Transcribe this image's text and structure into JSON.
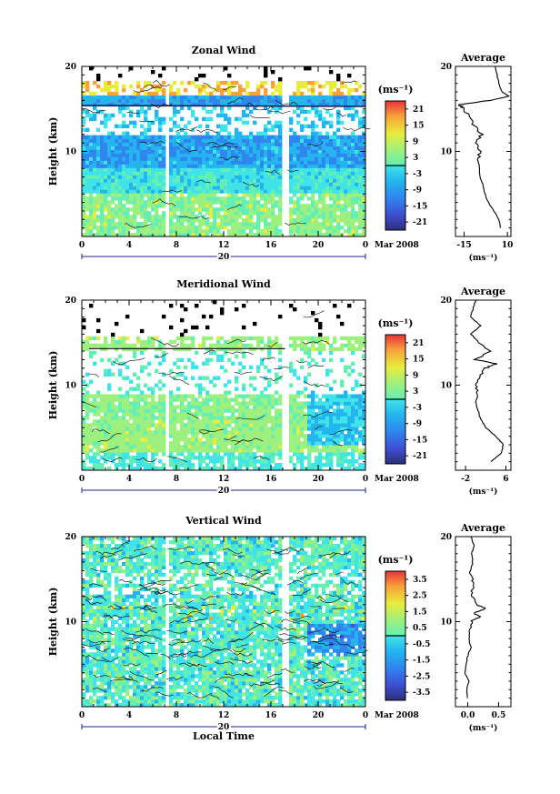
{
  "chart_data": [
    {
      "type": "heatmap",
      "title": "Zonal Wind",
      "ylabel": "Height (km)",
      "y_ticks": [
        "10",
        "20"
      ],
      "ylim": [
        0,
        20
      ],
      "x_ticks": [
        "0",
        "4",
        "8",
        "12",
        "16",
        "20",
        "0"
      ],
      "xlim": [
        0,
        24
      ],
      "date_day": "20",
      "date_label": "Mar 2008",
      "colorbar": {
        "unit": "(ms⁻¹)",
        "ticks": [
          "21",
          "15",
          "9",
          "3",
          "-3",
          "-9",
          "-15",
          "-21"
        ],
        "range": [
          -24,
          24
        ]
      },
      "gaps_hours": [
        7.2,
        17.2
      ],
      "profile": {
        "title": "Average",
        "x_ticks": [
          "-15",
          "10"
        ],
        "xlim": [
          -20,
          12
        ],
        "unit": "(ms⁻¹)",
        "y_ticks": [
          "10",
          "20"
        ],
        "heights_km": [
          1,
          2,
          3,
          4,
          5,
          6,
          7,
          8,
          9,
          10,
          11,
          12,
          13,
          14,
          15,
          15.5,
          16,
          16.5,
          17,
          18,
          19,
          20
        ],
        "values": [
          6,
          5,
          2,
          -1,
          -3,
          -4,
          -6,
          -6,
          -7,
          -6,
          -8,
          -5,
          -9,
          -12,
          -15,
          -18,
          0,
          11,
          7,
          5,
          4,
          3
        ]
      }
    },
    {
      "type": "heatmap",
      "title": "Meridional Wind",
      "ylabel": "Height (km)",
      "y_ticks": [
        "10",
        "20"
      ],
      "ylim": [
        0,
        20
      ],
      "x_ticks": [
        "0",
        "4",
        "8",
        "12",
        "16",
        "20",
        "0"
      ],
      "xlim": [
        0,
        24
      ],
      "date_day": "20",
      "date_label": "Mar 2008",
      "colorbar": {
        "unit": "(ms⁻¹)",
        "ticks": [
          "21",
          "15",
          "9",
          "3",
          "-3",
          "-9",
          "-15",
          "-21"
        ],
        "range": [
          -24,
          24
        ]
      },
      "gaps_hours": [
        7.2,
        17.2
      ],
      "profile": {
        "title": "Average",
        "x_ticks": [
          "-2",
          "6"
        ],
        "xlim": [
          -4,
          7
        ],
        "unit": "(ms⁻¹)",
        "y_ticks": [
          "10",
          "20"
        ],
        "heights_km": [
          1,
          2,
          3,
          4,
          5,
          6,
          7,
          8,
          9,
          10,
          11,
          12,
          12.5,
          13,
          14,
          15,
          16,
          17,
          18,
          19,
          20
        ],
        "values": [
          3,
          5,
          5.5,
          4,
          2,
          1,
          0.5,
          0,
          0.5,
          0,
          1,
          2,
          4,
          0,
          3,
          0.5,
          -1,
          1,
          -1,
          -0.5,
          0
        ]
      }
    },
    {
      "type": "heatmap",
      "title": "Vertical Wind",
      "ylabel": "Height (km)",
      "xlabel": "Local Time",
      "y_ticks": [
        "10",
        "20"
      ],
      "ylim": [
        0,
        20
      ],
      "x_ticks": [
        "0",
        "4",
        "8",
        "12",
        "16",
        "20",
        "0"
      ],
      "xlim": [
        0,
        24
      ],
      "date_day": "20",
      "date_label": "Mar 2008",
      "colorbar": {
        "unit": "(ms⁻¹)",
        "ticks": [
          "3.5",
          "2.5",
          "1.5",
          "0.5",
          "-0.5",
          "-1.5",
          "-2.5",
          "-3.5"
        ],
        "range": [
          -4,
          4
        ]
      },
      "gaps_hours": [
        7.2,
        17.2
      ],
      "profile": {
        "title": "Average",
        "x_ticks": [
          "0.0",
          "0.5"
        ],
        "xlim": [
          -0.2,
          0.7
        ],
        "unit": "(ms⁻¹)",
        "y_ticks": [
          "10",
          "20"
        ],
        "heights_km": [
          1,
          2,
          3,
          4,
          5,
          6,
          7,
          8,
          9,
          10,
          10.5,
          11,
          11.5,
          12,
          13,
          14,
          15,
          16,
          17,
          18,
          19,
          20
        ],
        "values": [
          0,
          -0.02,
          0.02,
          -0.05,
          -0.03,
          0.0,
          0.05,
          0.02,
          0.03,
          0.05,
          0.2,
          0.1,
          0.3,
          0.15,
          0.05,
          0.1,
          0.07,
          0.05,
          0.08,
          0.06,
          0.1,
          0.05
        ]
      }
    }
  ]
}
